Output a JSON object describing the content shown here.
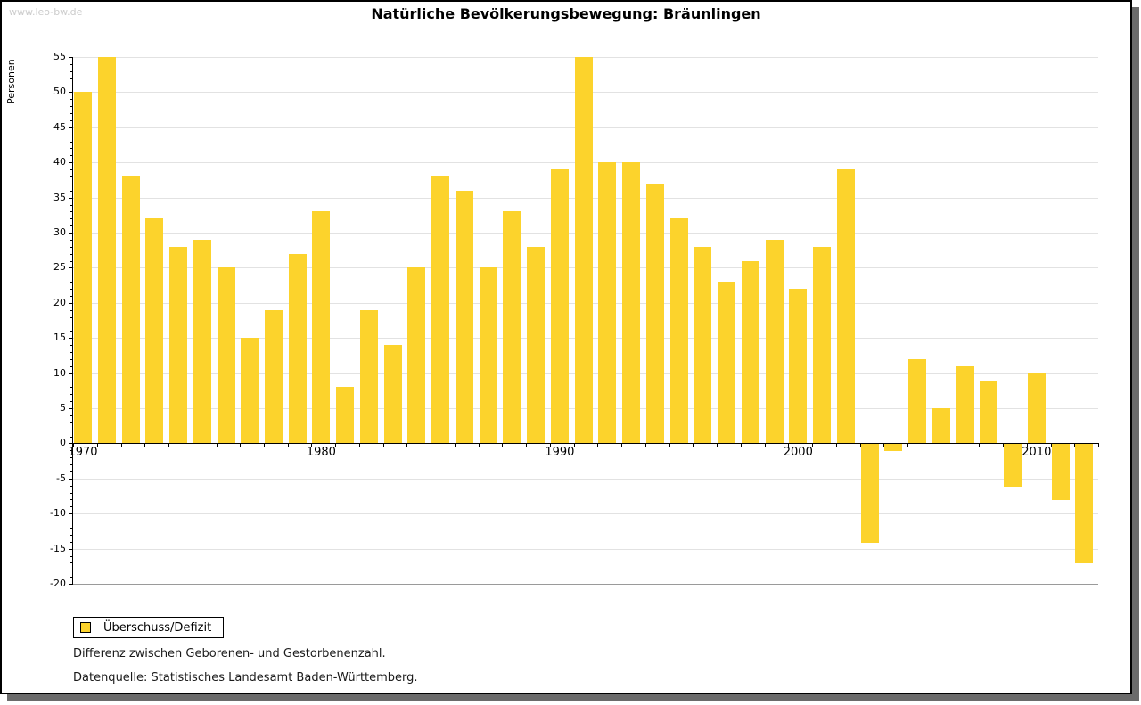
{
  "watermark": "www.leo-bw.de",
  "title": "Natürliche Bevölkerungsbewegung: Bräunlingen",
  "legend": {
    "label": "Überschuss/Defizit"
  },
  "notes": [
    "Differenz zwischen Geborenen- und Gestorbenenzahl.",
    "Datenquelle: Statistisches Landesamt Baden-Württemberg."
  ],
  "colors": {
    "bar": "#FCD32C",
    "grid": "#e2e2e2",
    "grid_strong": "#9a9a9a",
    "axis": "#000000",
    "shadow": "#6b6b6b",
    "watermark": "#cccccc"
  },
  "chart_data": {
    "type": "bar",
    "title": "Natürliche Bevölkerungsbewegung: Bräunlingen",
    "xlabel": "",
    "ylabel": "Personen",
    "series_name": "Überschuss/Defizit",
    "x": [
      1970,
      1971,
      1972,
      1973,
      1974,
      1975,
      1976,
      1977,
      1978,
      1979,
      1980,
      1981,
      1982,
      1983,
      1984,
      1985,
      1986,
      1987,
      1988,
      1989,
      1990,
      1991,
      1992,
      1993,
      1994,
      1995,
      1996,
      1997,
      1998,
      1999,
      2000,
      2001,
      2002,
      2003,
      2004,
      2005,
      2006,
      2007,
      2008,
      2009,
      2010,
      2011,
      2012
    ],
    "values": [
      50,
      55,
      38,
      32,
      28,
      29,
      25,
      15,
      19,
      27,
      33,
      8,
      19,
      14,
      25,
      38,
      36,
      25,
      33,
      28,
      39,
      55,
      40,
      40,
      37,
      32,
      28,
      23,
      26,
      29,
      22,
      28,
      39,
      -14,
      -1,
      12,
      5,
      11,
      9,
      -6,
      10,
      -8,
      -17
    ],
    "ylim": [
      -20,
      55
    ],
    "y_tick_step": 5,
    "y_tick_labels": [
      55,
      50,
      45,
      40,
      35,
      30,
      25,
      20,
      15,
      10,
      5,
      0,
      -5,
      -10,
      -15,
      -20
    ],
    "x_tick_labels": [
      1970,
      1980,
      1990,
      2000,
      2010
    ],
    "grid": true,
    "legend_position": "bottom-left"
  }
}
